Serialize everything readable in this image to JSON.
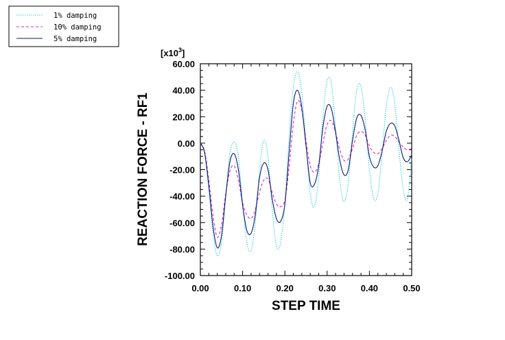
{
  "chart_data": {
    "type": "line",
    "title": "",
    "xlabel": "STEP TIME",
    "ylabel": "REACTION FORCE - RF1",
    "multiplier": "[x10",
    "multiplier_exp": "3",
    "multiplier_close": "]",
    "xlim": [
      0.0,
      0.5
    ],
    "ylim": [
      -100.0,
      60.0
    ],
    "x_ticks": [
      "0.00",
      "0.10",
      "0.20",
      "0.30",
      "0.40",
      "0.50"
    ],
    "y_ticks": [
      "-100.00",
      "-80.00",
      "-60.00",
      "-40.00",
      "-20.00",
      "0.00",
      "20.00",
      "40.00",
      "60.00"
    ],
    "legend_position": "top-left",
    "series": [
      {
        "name": "1% damping",
        "color": "#00c8d8",
        "dash": "1.2,1.8",
        "x": [
          0.0,
          0.01,
          0.02,
          0.03,
          0.04,
          0.05,
          0.06,
          0.07,
          0.08,
          0.09,
          0.1,
          0.11,
          0.12,
          0.13,
          0.14,
          0.15,
          0.16,
          0.17,
          0.18,
          0.19,
          0.2,
          0.21,
          0.22,
          0.23,
          0.24,
          0.25,
          0.26,
          0.27,
          0.28,
          0.29,
          0.3,
          0.31,
          0.32,
          0.33,
          0.34,
          0.35,
          0.36,
          0.37,
          0.38,
          0.39,
          0.4,
          0.41,
          0.42,
          0.43,
          0.44,
          0.45,
          0.46,
          0.47,
          0.48,
          0.49,
          0.5
        ],
        "values": [
          0,
          -8,
          -35,
          -68,
          -85,
          -75,
          -40,
          -8,
          1,
          -10,
          -45,
          -75,
          -81,
          -60,
          -20,
          2,
          -10,
          -50,
          -78,
          -75,
          -45,
          5,
          42,
          54,
          38,
          0,
          -38,
          -48,
          -25,
          20,
          47,
          45,
          12,
          -28,
          -44,
          -30,
          8,
          40,
          43,
          18,
          -20,
          -42,
          -38,
          -8,
          28,
          42,
          30,
          -5,
          -35,
          -42,
          -12
        ]
      },
      {
        "name": "10% damping",
        "color": "#e020d0",
        "dash": "4,3",
        "x": [
          0.0,
          0.01,
          0.02,
          0.03,
          0.04,
          0.05,
          0.06,
          0.07,
          0.08,
          0.09,
          0.1,
          0.11,
          0.12,
          0.13,
          0.14,
          0.15,
          0.16,
          0.17,
          0.18,
          0.19,
          0.2,
          0.21,
          0.22,
          0.23,
          0.24,
          0.25,
          0.26,
          0.27,
          0.28,
          0.29,
          0.3,
          0.31,
          0.32,
          0.33,
          0.34,
          0.35,
          0.36,
          0.37,
          0.38,
          0.39,
          0.4,
          0.41,
          0.42,
          0.43,
          0.44,
          0.45,
          0.46,
          0.47,
          0.48,
          0.49,
          0.5
        ],
        "values": [
          0,
          -6,
          -28,
          -55,
          -71,
          -62,
          -38,
          -21,
          -17,
          -28,
          -45,
          -54,
          -57,
          -50,
          -37,
          -28,
          -27,
          -37,
          -46,
          -48,
          -43,
          -18,
          15,
          32,
          25,
          2,
          -17,
          -22,
          -16,
          0,
          14,
          17,
          8,
          -5,
          -13,
          -12,
          -4,
          6,
          9,
          6,
          -2,
          -7,
          -8,
          -4,
          2,
          6,
          5,
          1,
          -3,
          -5,
          -4
        ]
      },
      {
        "name": "5% damping",
        "color": "#0a1a70",
        "dash": "",
        "x": [
          0.0,
          0.01,
          0.02,
          0.03,
          0.04,
          0.05,
          0.06,
          0.07,
          0.08,
          0.09,
          0.1,
          0.11,
          0.12,
          0.13,
          0.14,
          0.15,
          0.16,
          0.17,
          0.18,
          0.19,
          0.2,
          0.21,
          0.22,
          0.23,
          0.24,
          0.25,
          0.26,
          0.27,
          0.28,
          0.29,
          0.3,
          0.31,
          0.32,
          0.33,
          0.34,
          0.35,
          0.36,
          0.37,
          0.38,
          0.39,
          0.4,
          0.41,
          0.42,
          0.43,
          0.44,
          0.45,
          0.46,
          0.47,
          0.48,
          0.49,
          0.5
        ],
        "values": [
          0,
          -7,
          -32,
          -63,
          -79,
          -70,
          -40,
          -14,
          -8,
          -20,
          -47,
          -66,
          -68,
          -54,
          -26,
          -15,
          -20,
          -42,
          -57,
          -59,
          -46,
          -7,
          30,
          40,
          27,
          -2,
          -30,
          -31,
          -17,
          12,
          28,
          26,
          8,
          -13,
          -24,
          -20,
          2,
          19,
          21,
          10,
          -10,
          -18,
          -17,
          -6,
          9,
          15,
          13,
          2,
          -11,
          -14,
          -9
        ]
      }
    ]
  }
}
